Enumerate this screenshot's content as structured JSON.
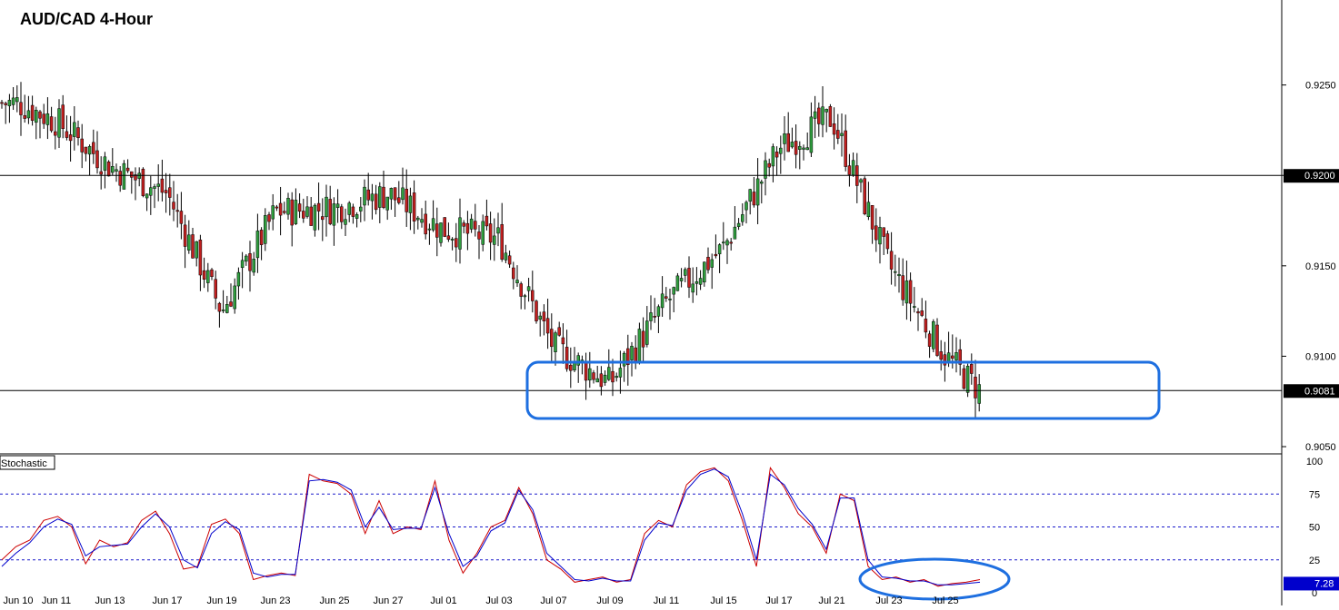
{
  "chart_data": [
    {
      "type": "candlestick",
      "title": "AUD/CAD 4-Hour",
      "ylim": [
        0.9046,
        0.9297
      ],
      "y_ticks": [
        "0.9250",
        "0.9200",
        "0.9150",
        "0.9100",
        "0.9050"
      ],
      "x_ticks": [
        "Jun 10",
        "Jun 11",
        "Jun 13",
        "Jun 17",
        "Jun 19",
        "Jun 23",
        "Jun 25",
        "Jun 27",
        "Jul 01",
        "Jul 03",
        "Jul 07",
        "Jul 09",
        "Jul 11",
        "Jul 15",
        "Jul 17",
        "Jul 21",
        "Jul 23",
        "Jul 25"
      ],
      "horizontal_levels": [
        {
          "label": "0.9200",
          "value": 0.92
        },
        {
          "label": "0.9081",
          "value": 0.9081
        }
      ],
      "grid": false,
      "highlight": {
        "shape": "rounded-rectangle",
        "y_range": [
          0.9066,
          0.9095
        ],
        "x_range": [
          "Jul 07",
          "after Jul 25"
        ],
        "color": "#1e6fe0"
      },
      "ohlc_close_path": [
        [
          "Jun 10",
          0.924
        ],
        [
          "Jun 11",
          0.923
        ],
        [
          "Jun 13",
          0.9205
        ],
        [
          "Jun 17",
          0.919
        ],
        [
          "Jun 19",
          0.9125
        ],
        [
          "Jun 23",
          0.918
        ],
        [
          "Jun 25",
          0.9182
        ],
        [
          "Jun 27",
          0.919
        ],
        [
          "Jul 01",
          0.917
        ],
        [
          "Jul 03",
          0.9165
        ],
        [
          "Jul 07",
          0.9105
        ],
        [
          "Jul 09",
          0.9085
        ],
        [
          "Jul 11",
          0.913
        ],
        [
          "Jul 15",
          0.916
        ],
        [
          "Jul 17",
          0.9215
        ],
        [
          "Jul 21",
          0.9232
        ],
        [
          "Jul 23",
          0.915
        ],
        [
          "Jul 25",
          0.91
        ],
        [
          "Jul 25+",
          0.9081
        ]
      ],
      "colors": {
        "up": "#2f9e3e",
        "down": "#c21f1f",
        "wick": "#000000"
      }
    },
    {
      "type": "line",
      "title": "Stochastic",
      "ylim": [
        0,
        100
      ],
      "y_ticks": [
        "100",
        "75",
        "50",
        "25",
        "0"
      ],
      "levels": [
        75,
        50,
        25
      ],
      "last_value_label": "7.28",
      "highlight": {
        "shape": "ellipse",
        "x_range": [
          "Jul 23",
          "Jul 25+"
        ],
        "color": "#1e6fe0"
      },
      "series": [
        {
          "color": "#cc0000",
          "values": [
            25,
            35,
            40,
            55,
            58,
            50,
            22,
            40,
            35,
            38,
            55,
            62,
            45,
            18,
            20,
            52,
            56,
            45,
            10,
            13,
            15,
            13,
            90,
            85,
            83,
            75,
            45,
            70,
            45,
            50,
            48,
            85,
            40,
            15,
            30,
            50,
            55,
            80,
            60,
            25,
            18,
            8,
            10,
            12,
            8,
            10,
            45,
            55,
            50,
            82,
            92,
            95,
            85,
            55,
            20,
            95,
            80,
            60,
            50,
            30,
            75,
            70,
            20,
            10,
            12,
            8,
            10,
            5,
            7,
            8,
            10
          ]
        },
        {
          "color": "#0000cc",
          "values": [
            20,
            30,
            38,
            50,
            56,
            52,
            28,
            35,
            36,
            37,
            50,
            60,
            50,
            25,
            19,
            45,
            54,
            48,
            15,
            12,
            14,
            14,
            85,
            86,
            84,
            78,
            50,
            65,
            48,
            49,
            49,
            80,
            45,
            20,
            28,
            47,
            53,
            78,
            63,
            30,
            20,
            10,
            9,
            11,
            9,
            9,
            40,
            53,
            51,
            78,
            90,
            94,
            88,
            60,
            25,
            90,
            82,
            64,
            52,
            33,
            72,
            72,
            25,
            12,
            11,
            9,
            9,
            6,
            6,
            7,
            8
          ]
        }
      ]
    }
  ]
}
